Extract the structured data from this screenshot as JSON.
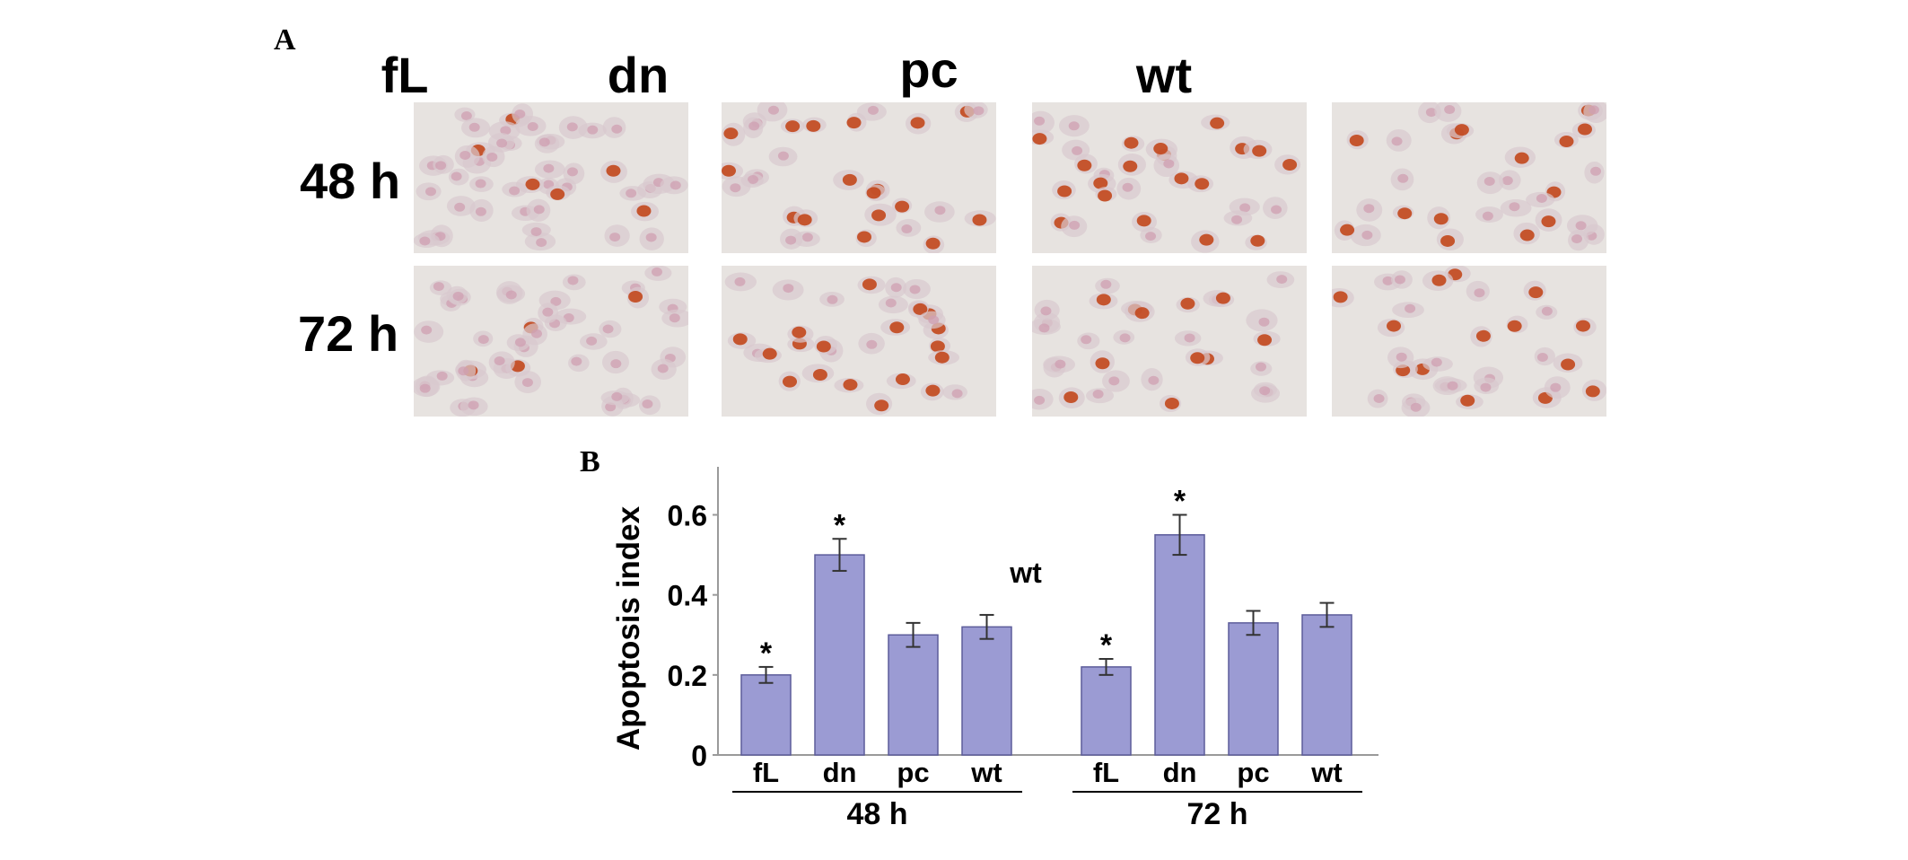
{
  "panel_a": {
    "label": "A",
    "columns": [
      "fL",
      "dn",
      "pc",
      "wt"
    ],
    "rows": [
      "48 h",
      "72 h"
    ]
  },
  "panel_b": {
    "label": "B"
  },
  "colors": {
    "bar_fill": "#9b9bd3",
    "bar_stroke": "#5c5c9a",
    "axis": "#9a9a9a",
    "cell_bg": "#e7e3e0",
    "nucleus_stain": "#c2471c",
    "counterstain": "#cf9fb2"
  },
  "chart_data": {
    "type": "bar",
    "ylabel": "Apoptosis index",
    "ylim": [
      0,
      0.72
    ],
    "yticks": [
      0,
      0.2,
      0.4,
      0.6
    ],
    "ytick_labels": [
      "0",
      "0.2",
      "0.4",
      "0.6"
    ],
    "stray_label": "wt",
    "groups": [
      {
        "label": "48 h",
        "categories": [
          "fL",
          "dn",
          "pc",
          "wt"
        ],
        "values": [
          0.2,
          0.5,
          0.3,
          0.32
        ],
        "errors": [
          0.02,
          0.04,
          0.03,
          0.03
        ],
        "significance": [
          "*",
          "*",
          "",
          ""
        ]
      },
      {
        "label": "72 h",
        "categories": [
          "fL",
          "dn",
          "pc",
          "wt"
        ],
        "values": [
          0.22,
          0.55,
          0.33,
          0.35
        ],
        "errors": [
          0.02,
          0.05,
          0.03,
          0.03
        ],
        "significance": [
          "*",
          "*",
          "",
          ""
        ]
      }
    ]
  }
}
